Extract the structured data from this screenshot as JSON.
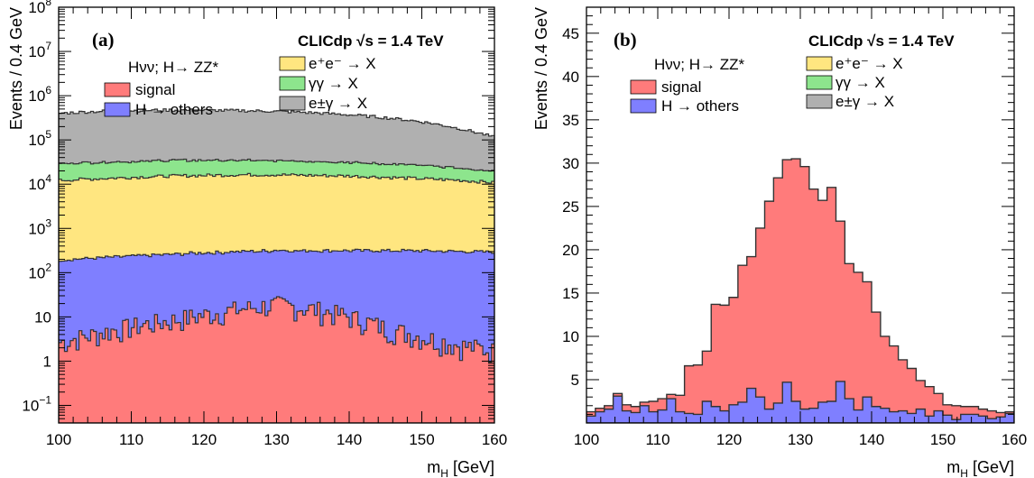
{
  "colors": {
    "signal": "#ff7b7b",
    "h_others": "#7f7fff",
    "ee": "#ffe680",
    "gg": "#8de58d",
    "eg": "#b0b0b0",
    "outline": "#333333"
  },
  "chart_data": [
    {
      "type": "area",
      "stacked": true,
      "histogram": true,
      "panel_label": "(a)",
      "title": "CLICdp  √s = 1.4 TeV",
      "process_label": "Hνν; H→ ZZ*",
      "xlabel": "m_H [GeV]",
      "xlabel_main": "m",
      "xlabel_sub": "H",
      "xlabel_unit": "[GeV]",
      "ylabel": "Events / 0.4 GeV",
      "yscale": "log",
      "xlim": [
        100,
        160
      ],
      "ylim": [
        0.04,
        100000000
      ],
      "x_ticks": [
        100,
        110,
        120,
        130,
        140,
        150,
        160
      ],
      "y_ticks": [
        {
          "v": 0.1,
          "t": "10",
          "s": "−1"
        },
        {
          "v": 1,
          "t": "1",
          "s": ""
        },
        {
          "v": 10,
          "t": "10",
          "s": ""
        },
        {
          "v": 100,
          "t": "10",
          "s": "2"
        },
        {
          "v": 1000,
          "t": "10",
          "s": "3"
        },
        {
          "v": 10000,
          "t": "10",
          "s": "4"
        },
        {
          "v": 100000,
          "t": "10",
          "s": "5"
        },
        {
          "v": 1000000,
          "t": "10",
          "s": "6"
        },
        {
          "v": 10000000,
          "t": "10",
          "s": "7"
        },
        {
          "v": 100000000,
          "t": "10",
          "s": "8"
        }
      ],
      "x": [
        100,
        105,
        110,
        115,
        120,
        125,
        130,
        135,
        140,
        145,
        150,
        155,
        160
      ],
      "series": [
        {
          "name": "signal",
          "key": "signal",
          "values": [
            2.6,
            4,
            6,
            8,
            11,
            15,
            19,
            15,
            10,
            5.5,
            3.5,
            2.3,
            1.7
          ]
        },
        {
          "name": "H → others",
          "key": "h_others",
          "values": [
            190,
            210,
            230,
            250,
            270,
            285,
            295,
            300,
            305,
            310,
            310,
            300,
            290
          ]
        },
        {
          "name": "e+e- → X",
          "key": "ee",
          "values": [
            12000,
            13000,
            14000,
            15000,
            15500,
            16000,
            16000,
            15500,
            15000,
            14000,
            13000,
            12000,
            10500
          ]
        },
        {
          "name": "γγ → X",
          "key": "gg",
          "values": [
            17000,
            18000,
            18500,
            19000,
            19000,
            18500,
            18000,
            17000,
            16000,
            14500,
            13000,
            11000,
            8500
          ]
        },
        {
          "name": "e±γ → X",
          "key": "eg",
          "values": [
            370000,
            410000,
            430000,
            440000,
            435000,
            425000,
            410000,
            380000,
            340000,
            290000,
            230000,
            160000,
            95000
          ]
        }
      ],
      "legend": {
        "left": [
          {
            "label": "signal",
            "key": "signal"
          },
          {
            "label": "H → others",
            "key": "h_others"
          }
        ],
        "right": [
          {
            "label": "e⁺e⁻ → X",
            "key": "ee"
          },
          {
            "label": "γγ → X",
            "key": "gg"
          },
          {
            "label": "e±γ → X",
            "key": "eg"
          }
        ]
      }
    },
    {
      "type": "area",
      "stacked": true,
      "histogram": true,
      "panel_label": "(b)",
      "title": "CLICdp  √s = 1.4 TeV",
      "process_label": "Hνν; H→ ZZ*",
      "xlabel": "m_H [GeV]",
      "xlabel_main": "m",
      "xlabel_sub": "H",
      "xlabel_unit": "[GeV]",
      "ylabel": "Events / 0.4 GeV",
      "yscale": "linear",
      "xlim": [
        100,
        160
      ],
      "ylim": [
        0,
        48
      ],
      "x_ticks": [
        100,
        110,
        120,
        130,
        140,
        150,
        160
      ],
      "y_ticks": [
        {
          "v": 5,
          "t": "5",
          "s": ""
        },
        {
          "v": 10,
          "t": "10",
          "s": ""
        },
        {
          "v": 15,
          "t": "15",
          "s": ""
        },
        {
          "v": 20,
          "t": "20",
          "s": ""
        },
        {
          "v": 25,
          "t": "25",
          "s": ""
        },
        {
          "v": 30,
          "t": "30",
          "s": ""
        },
        {
          "v": 35,
          "t": "35",
          "s": ""
        },
        {
          "v": 40,
          "t": "40",
          "s": ""
        },
        {
          "v": 45,
          "t": "45",
          "s": ""
        }
      ],
      "bin_edges": [
        100,
        101.25,
        102.5,
        103.75,
        105,
        106.25,
        107.5,
        108.75,
        110,
        111.25,
        112.5,
        113.75,
        115,
        116.25,
        117.5,
        118.75,
        120,
        121.25,
        122.5,
        123.75,
        125,
        126.25,
        127.5,
        128.75,
        130,
        131.25,
        132.5,
        133.75,
        135,
        136.25,
        137.5,
        138.75,
        140,
        141.25,
        142.5,
        143.75,
        145,
        146.25,
        147.5,
        148.75,
        150,
        151.25,
        152.5,
        153.75,
        155,
        156.25,
        157.5,
        158.75,
        160
      ],
      "series": [
        {
          "name": "H → others",
          "key": "h_others",
          "values": [
            0.8,
            1.3,
            1.6,
            3.1,
            1.4,
            1.2,
            2,
            1.3,
            1.5,
            2.8,
            1.3,
            1.1,
            1,
            2.5,
            1.9,
            1.4,
            2.1,
            2.4,
            4,
            3,
            1.6,
            2.3,
            4.7,
            2.5,
            1.6,
            1.7,
            2.4,
            2.5,
            4.8,
            2.8,
            1.5,
            3,
            1.9,
            1.7,
            1.3,
            1.4,
            1.1,
            1.6,
            0.8,
            1.4,
            0.9,
            0.4,
            1,
            1,
            0.8,
            0.5,
            0.7,
            1.1
          ]
        },
        {
          "name": "signal",
          "key": "signal",
          "values": [
            0.5,
            0.4,
            0.4,
            0.3,
            0.7,
            0.7,
            0.4,
            1.2,
            1.3,
            0.5,
            1.9,
            5.5,
            5.7,
            5.8,
            11.8,
            12.2,
            12.4,
            15.8,
            15.2,
            19.5,
            24,
            26,
            25.7,
            28,
            28,
            25.3,
            23.3,
            24.7,
            18.5,
            15.6,
            15.9,
            13.3,
            10.9,
            8.3,
            7.6,
            5.9,
            5.2,
            3.3,
            3.4,
            2,
            1.2,
            1.6,
            0.9,
            0.9,
            0.8,
            0.9,
            0.5,
            0.2
          ]
        }
      ],
      "legend": {
        "left": [
          {
            "label": "signal",
            "key": "signal"
          },
          {
            "label": "H → others",
            "key": "h_others"
          }
        ],
        "right": [
          {
            "label": "e⁺e⁻ → X",
            "key": "ee"
          },
          {
            "label": "γγ → X",
            "key": "gg"
          },
          {
            "label": "e±γ → X",
            "key": "eg"
          }
        ]
      }
    }
  ]
}
